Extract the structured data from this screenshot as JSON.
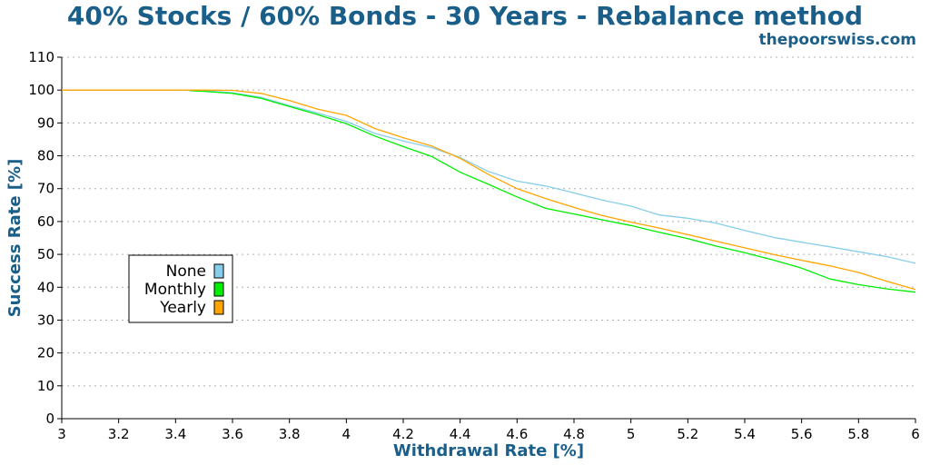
{
  "chart_data": {
    "type": "line",
    "title": "40% Stocks / 60% Bonds - 30 Years - Rebalance method",
    "site": "thepoorswiss.com",
    "xlabel": "Withdrawal Rate [%]",
    "ylabel": "Success Rate [%]",
    "xlim": [
      3,
      6
    ],
    "ylim": [
      0,
      110
    ],
    "x_ticks": [
      "3",
      "3.2",
      "3.4",
      "3.6",
      "3.8",
      "4",
      "4.2",
      "4.4",
      "4.6",
      "4.8",
      "5",
      "5.2",
      "5.4",
      "5.6",
      "5.8",
      "6"
    ],
    "y_ticks": [
      "0",
      "10",
      "20",
      "30",
      "40",
      "50",
      "60",
      "70",
      "80",
      "90",
      "100",
      "110"
    ],
    "grid": "horizontal dotted",
    "legend_position": "left-middle",
    "series": [
      {
        "name": "None",
        "color": "#87ceeb",
        "x": [
          3.0,
          3.2,
          3.4,
          3.5,
          3.6,
          3.7,
          3.8,
          3.9,
          4.0,
          4.1,
          4.2,
          4.3,
          4.4,
          4.5,
          4.6,
          4.7,
          4.8,
          4.9,
          5.0,
          5.1,
          5.2,
          5.3,
          5.4,
          5.5,
          5.6,
          5.7,
          5.8,
          5.9,
          6.0
        ],
        "y": [
          100,
          100,
          100,
          99.8,
          99.2,
          97.8,
          95.3,
          93.0,
          90.5,
          86.8,
          84.5,
          82.5,
          79.5,
          75.2,
          72.3,
          70.8,
          68.7,
          66.5,
          64.7,
          62.0,
          61.0,
          59.5,
          57.3,
          55.2,
          53.7,
          52.3,
          50.8,
          49.3,
          47.3
        ]
      },
      {
        "name": "Monthly",
        "color": "#00ee00",
        "x": [
          3.45,
          3.5,
          3.6,
          3.7,
          3.8,
          3.9,
          4.0,
          4.1,
          4.2,
          4.3,
          4.4,
          4.5,
          4.6,
          4.7,
          4.8,
          4.9,
          5.0,
          5.1,
          5.2,
          5.3,
          5.4,
          5.5,
          5.6,
          5.7,
          5.8,
          5.9,
          6.0
        ],
        "y": [
          99.8,
          99.6,
          99.0,
          97.5,
          95.0,
          92.5,
          89.8,
          86.0,
          82.8,
          79.8,
          75.0,
          71.3,
          67.5,
          64.0,
          62.3,
          60.5,
          58.8,
          56.7,
          54.8,
          52.5,
          50.5,
          48.3,
          45.8,
          42.5,
          40.8,
          39.5,
          38.5
        ]
      },
      {
        "name": "Yearly",
        "color": "#ffa500",
        "x": [
          3.0,
          3.2,
          3.4,
          3.5,
          3.6,
          3.7,
          3.8,
          3.9,
          4.0,
          4.1,
          4.2,
          4.3,
          4.4,
          4.5,
          4.6,
          4.7,
          4.8,
          4.9,
          5.0,
          5.1,
          5.2,
          5.3,
          5.4,
          5.5,
          5.6,
          5.7,
          5.8,
          5.9,
          6.0
        ],
        "y": [
          100,
          100,
          100,
          100,
          99.9,
          99.0,
          96.8,
          94.2,
          92.3,
          88.3,
          85.5,
          83.0,
          79.2,
          74.3,
          70.0,
          67.0,
          64.3,
          61.8,
          59.8,
          58.0,
          56.0,
          54.0,
          52.0,
          50.0,
          48.2,
          46.5,
          44.5,
          41.8,
          39.3
        ]
      }
    ]
  }
}
